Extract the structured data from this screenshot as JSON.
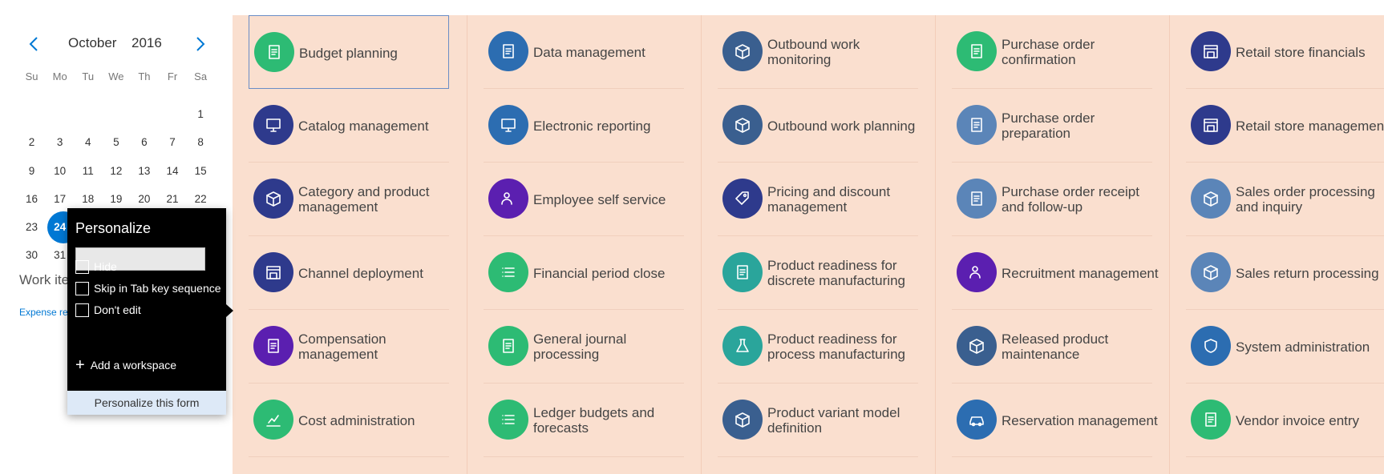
{
  "calendar": {
    "month": "October",
    "year": "2016",
    "prev_icon": "chevron-left-icon",
    "next_icon": "chevron-right-icon",
    "weekdays": [
      "Su",
      "Mo",
      "Tu",
      "We",
      "Th",
      "Fr",
      "Sa"
    ],
    "weeks": [
      [
        "",
        "",
        "",
        "",
        "",
        "",
        "1"
      ],
      [
        "2",
        "3",
        "4",
        "5",
        "6",
        "7",
        "8"
      ],
      [
        "9",
        "10",
        "11",
        "12",
        "13",
        "14",
        "15"
      ],
      [
        "16",
        "17",
        "18",
        "19",
        "20",
        "21",
        "22"
      ],
      [
        "23",
        "24",
        "",
        "",
        "",
        "",
        ""
      ],
      [
        "30",
        "31",
        "",
        "",
        "",
        "",
        ""
      ]
    ],
    "today": "24",
    "accent_color": "#0078d4"
  },
  "work_items": {
    "title": "Work ite",
    "link": "Expense rep"
  },
  "tiles": {
    "background_color": "#fadfcf",
    "columns": [
      [
        {
          "label": "Budget planning",
          "color": "#2dbb74",
          "icon": "budget-planning-icon"
        },
        {
          "label": "Catalog management",
          "color": "#2e3a8c",
          "icon": "catalog-management-icon"
        },
        {
          "label": "Category and product management",
          "color": "#2e3a8c",
          "icon": "category-product-icon"
        },
        {
          "label": "Channel deployment",
          "color": "#2e3a8c",
          "icon": "channel-deployment-icon"
        },
        {
          "label": "Compensation management",
          "color": "#5b1fb0",
          "icon": "compensation-icon"
        },
        {
          "label": "Cost administration",
          "color": "#2dbb74",
          "icon": "cost-administration-icon"
        }
      ],
      [
        {
          "label": "Data management",
          "color": "#2c6db1",
          "icon": "data-management-icon"
        },
        {
          "label": "Electronic reporting",
          "color": "#2c6db1",
          "icon": "electronic-reporting-icon"
        },
        {
          "label": "Employee self service",
          "color": "#5b1fb0",
          "icon": "employee-self-service-icon"
        },
        {
          "label": "Financial period close",
          "color": "#2dbb74",
          "icon": "financial-period-close-icon"
        },
        {
          "label": "General journal processing",
          "color": "#2dbb74",
          "icon": "general-journal-icon"
        },
        {
          "label": "Ledger budgets and forecasts",
          "color": "#2dbb74",
          "icon": "ledger-budgets-icon"
        }
      ],
      [
        {
          "label": "Outbound work monitoring",
          "color": "#3a5f8f",
          "icon": "outbound-monitoring-icon"
        },
        {
          "label": "Outbound work planning",
          "color": "#3a5f8f",
          "icon": "outbound-planning-icon"
        },
        {
          "label": "Pricing and discount management",
          "color": "#2e3a8c",
          "icon": "pricing-discount-icon"
        },
        {
          "label": "Product readiness for discrete manufacturing",
          "color": "#2aa59b",
          "icon": "product-readiness-discrete-icon"
        },
        {
          "label": "Product readiness for process manufacturing",
          "color": "#2aa59b",
          "icon": "product-readiness-process-icon"
        },
        {
          "label": "Product variant model definition",
          "color": "#3a5f8f",
          "icon": "product-variant-icon"
        }
      ],
      [
        {
          "label": "Purchase order confirmation",
          "color": "#2dbb74",
          "icon": "po-confirmation-icon"
        },
        {
          "label": "Purchase order preparation",
          "color": "#5b85b8",
          "icon": "po-preparation-icon"
        },
        {
          "label": "Purchase order receipt and follow-up",
          "color": "#5b85b8",
          "icon": "po-receipt-icon"
        },
        {
          "label": "Recruitment management",
          "color": "#5b1fb0",
          "icon": "recruitment-icon"
        },
        {
          "label": "Released product maintenance",
          "color": "#3a5f8f",
          "icon": "released-product-icon"
        },
        {
          "label": "Reservation management",
          "color": "#2c6db1",
          "icon": "reservation-icon"
        }
      ],
      [
        {
          "label": "Retail store financials",
          "color": "#2e3a8c",
          "icon": "retail-store-financials-icon"
        },
        {
          "label": "Retail store management",
          "color": "#2e3a8c",
          "icon": "retail-store-management-icon"
        },
        {
          "label": "Sales order processing and inquiry",
          "color": "#5b85b8",
          "icon": "sales-order-icon"
        },
        {
          "label": "Sales return processing",
          "color": "#5b85b8",
          "icon": "sales-return-icon"
        },
        {
          "label": "System administration",
          "color": "#2c6db1",
          "icon": "system-administration-icon"
        },
        {
          "label": "Vendor invoice entry",
          "color": "#2dbb74",
          "icon": "vendor-invoice-icon"
        }
      ]
    ]
  },
  "personalize": {
    "title": "Personalize",
    "input_value": "",
    "options": [
      {
        "label": "Hide",
        "checked": false
      },
      {
        "label": "Skip in Tab key sequence",
        "checked": false
      },
      {
        "label": "Don't edit",
        "checked": false
      }
    ],
    "add_workspace": "Add a workspace",
    "add_icon": "plus-icon",
    "footer_button": "Personalize this form"
  }
}
